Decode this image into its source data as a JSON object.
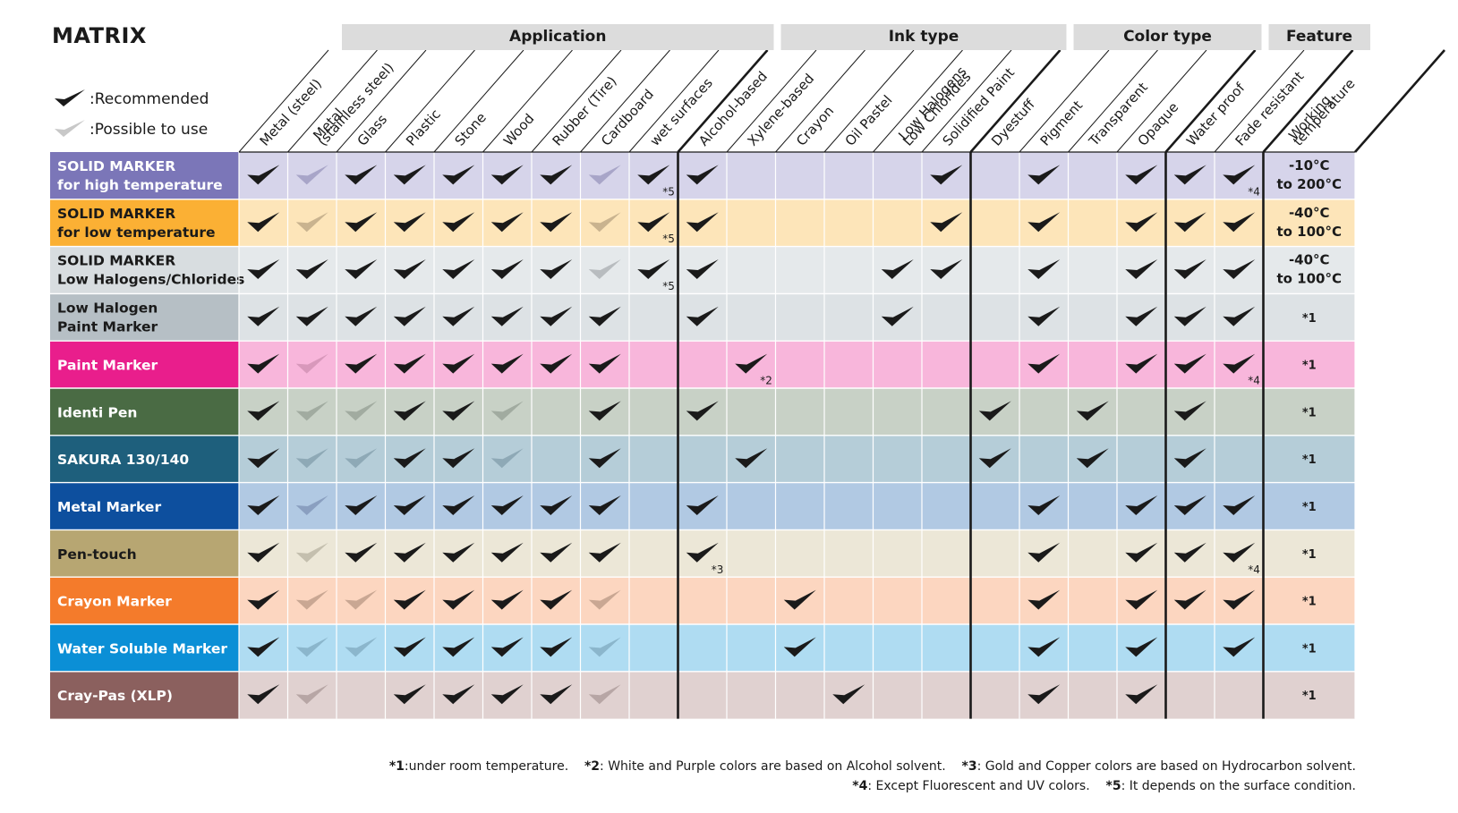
{
  "title": "MATRIX",
  "legend": {
    "recommended": ":Recommended",
    "possible": ":Possible to use"
  },
  "groups": [
    {
      "label": "Application"
    },
    {
      "label": "Ink type"
    },
    {
      "label": "Color type"
    },
    {
      "label": "Feature"
    }
  ],
  "columns": [
    {
      "lines": [
        "Metal (steel)"
      ]
    },
    {
      "lines": [
        "Metal",
        "(stainless steel)"
      ]
    },
    {
      "lines": [
        "Glass"
      ]
    },
    {
      "lines": [
        "Plastic"
      ]
    },
    {
      "lines": [
        "Stone"
      ]
    },
    {
      "lines": [
        "Wood"
      ]
    },
    {
      "lines": [
        "Rubber (Tire)"
      ]
    },
    {
      "lines": [
        "Cardboard"
      ]
    },
    {
      "lines": [
        "wet surfaces"
      ]
    },
    {
      "lines": [
        "Alcohol-based"
      ]
    },
    {
      "lines": [
        "Xylene-based"
      ]
    },
    {
      "lines": [
        "Crayon"
      ]
    },
    {
      "lines": [
        "Oil Pastel"
      ]
    },
    {
      "lines": [
        "Low Halogens",
        "Low Chlorides"
      ]
    },
    {
      "lines": [
        "Solidified Paint"
      ]
    },
    {
      "lines": [
        "Dyestuff"
      ]
    },
    {
      "lines": [
        "Pigment"
      ]
    },
    {
      "lines": [
        "Transparent"
      ]
    },
    {
      "lines": [
        "Opaque"
      ]
    },
    {
      "lines": [
        "Water proof"
      ]
    },
    {
      "lines": [
        "Fade resistant"
      ]
    },
    {
      "lines": [
        "Working",
        "temperature"
      ]
    }
  ],
  "colors": {
    "check_dark": "#1a1a1a",
    "check_possible_legend": "#c8c8c8",
    "header_band": "#dcdcdc"
  },
  "rows": [
    {
      "lines": [
        "SOLID MARKER",
        "for high temperature"
      ],
      "label_bg": "#7b76b8",
      "label_color": "#ffffff",
      "cell_bg": "#d6d4ea",
      "light_check": "#a8a5c8",
      "cells": [
        "R",
        "P",
        "R",
        "R",
        "R",
        "R",
        "R",
        "P",
        "R*5",
        "R",
        "",
        "",
        "",
        "",
        "R",
        "",
        "R",
        "",
        "R",
        "R",
        "R*4"
      ],
      "temp": [
        "-10°C",
        "to 200°C"
      ]
    },
    {
      "lines": [
        "SOLID MARKER",
        "for low temperature"
      ],
      "label_bg": "#fbb034",
      "label_color": "#1a1a1a",
      "cell_bg": "#fde5b9",
      "light_check": "#c9b38f",
      "cells": [
        "R",
        "P",
        "R",
        "R",
        "R",
        "R",
        "R",
        "P",
        "R*5",
        "R",
        "",
        "",
        "",
        "",
        "R",
        "",
        "R",
        "",
        "R",
        "R",
        "R"
      ],
      "temp": [
        "-40°C",
        "to 100°C"
      ]
    },
    {
      "lines": [
        "SOLID MARKER",
        "Low Halogens/Chlorides"
      ],
      "label_bg": "#d8dde0",
      "label_color": "#1a1a1a",
      "cell_bg": "#e5e9eb",
      "light_check": "#b8bcbf",
      "cells": [
        "R",
        "R",
        "R",
        "R",
        "R",
        "R",
        "R",
        "P",
        "R*5",
        "R",
        "",
        "",
        "",
        "R",
        "R",
        "",
        "R",
        "",
        "R",
        "R",
        "R"
      ],
      "temp": [
        "-40°C",
        "to 100°C"
      ]
    },
    {
      "lines": [
        "Low Halogen",
        "Paint Marker"
      ],
      "label_bg": "#b6bfc5",
      "label_color": "#1a1a1a",
      "cell_bg": "#dde2e5",
      "light_check": "#b2b8bc",
      "cells": [
        "R",
        "R",
        "R",
        "R",
        "R",
        "R",
        "R",
        "R",
        "",
        "R",
        "",
        "",
        "",
        "R",
        "",
        "",
        "R",
        "",
        "R",
        "R",
        "R"
      ],
      "temp": [
        "*1"
      ]
    },
    {
      "lines": [
        "Paint Marker"
      ],
      "label_bg": "#e91e8c",
      "label_color": "#ffffff",
      "cell_bg": "#f8b6db",
      "light_check": "#d898bb",
      "cells": [
        "R",
        "P",
        "R",
        "R",
        "R",
        "R",
        "R",
        "R",
        "",
        "",
        "R*2",
        "",
        "",
        "",
        "",
        "",
        "R",
        "",
        "R",
        "R",
        "R*4"
      ],
      "temp": [
        "*1"
      ]
    },
    {
      "lines": [
        "Identi Pen"
      ],
      "label_bg": "#4a6b44",
      "label_color": "#ffffff",
      "cell_bg": "#c8d1c6",
      "light_check": "#a1aba0",
      "cells": [
        "R",
        "P",
        "P",
        "R",
        "R",
        "P",
        "",
        "R",
        "",
        "R",
        "",
        "",
        "",
        "",
        "",
        "R",
        "",
        "R",
        "",
        "R",
        ""
      ],
      "temp": [
        "*1"
      ]
    },
    {
      "lines": [
        "SAKURA 130/140"
      ],
      "label_bg": "#1e5f7c",
      "label_color": "#ffffff",
      "cell_bg": "#b5cdd8",
      "light_check": "#8ea9b6",
      "cells": [
        "R",
        "P",
        "P",
        "R",
        "R",
        "P",
        "",
        "R",
        "",
        "",
        "R",
        "",
        "",
        "",
        "",
        "R",
        "",
        "R",
        "",
        "R",
        ""
      ],
      "temp": [
        "*1"
      ]
    },
    {
      "lines": [
        "Metal Marker"
      ],
      "label_bg": "#0d4f9e",
      "label_color": "#ffffff",
      "cell_bg": "#b1c9e3",
      "light_check": "#8a9fc0",
      "cells": [
        "R",
        "P",
        "R",
        "R",
        "R",
        "R",
        "R",
        "R",
        "",
        "R",
        "",
        "",
        "",
        "",
        "",
        "",
        "R",
        "",
        "R",
        "R",
        "R"
      ],
      "temp": [
        "*1"
      ]
    },
    {
      "lines": [
        "Pen-touch"
      ],
      "label_bg": "#b7a672",
      "label_color": "#1a1a1a",
      "cell_bg": "#ece7d7",
      "light_check": "#c4bfae",
      "cells": [
        "R",
        "P",
        "R",
        "R",
        "R",
        "R",
        "R",
        "R",
        "",
        "R*3",
        "",
        "",
        "",
        "",
        "",
        "",
        "R",
        "",
        "R",
        "R",
        "R*4"
      ],
      "temp": [
        "*1"
      ]
    },
    {
      "lines": [
        "Crayon Marker"
      ],
      "label_bg": "#f47b2b",
      "label_color": "#ffffff",
      "cell_bg": "#fcd6c0",
      "light_check": "#c9a793",
      "cells": [
        "R",
        "P",
        "P",
        "R",
        "R",
        "R",
        "R",
        "P",
        "",
        "",
        "",
        "R",
        "",
        "",
        "",
        "",
        "R",
        "",
        "R",
        "R",
        "R"
      ],
      "temp": [
        "*1"
      ]
    },
    {
      "lines": [
        "Water Soluble Marker"
      ],
      "label_bg": "#0b8fd6",
      "label_color": "#ffffff",
      "cell_bg": "#afdcf2",
      "light_check": "#8bb6cc",
      "cells": [
        "R",
        "P",
        "P",
        "R",
        "R",
        "R",
        "R",
        "P",
        "",
        "",
        "",
        "R",
        "",
        "",
        "",
        "",
        "R",
        "",
        "R",
        "",
        "R"
      ],
      "temp": [
        "*1"
      ]
    },
    {
      "lines": [
        "Cray-Pas (XLP)"
      ],
      "label_bg": "#8b605e",
      "label_color": "#ffffff",
      "cell_bg": "#e0d1d0",
      "light_check": "#b7a6a5",
      "cells": [
        "R",
        "P",
        "",
        "R",
        "R",
        "R",
        "R",
        "P",
        "",
        "",
        "",
        "",
        "R",
        "",
        "",
        "",
        "R",
        "",
        "R",
        "",
        ""
      ],
      "temp": [
        "*1"
      ]
    }
  ],
  "footnotes": {
    "line1": [
      {
        "mark": "*1",
        "text": ":under room temperature."
      },
      {
        "mark": "*2",
        "text": ": White and Purple colors are based on Alcohol solvent."
      },
      {
        "mark": "*3",
        "text": ": Gold and Copper colors are based on Hydrocarbon solvent."
      }
    ],
    "line2": [
      {
        "mark": "*4",
        "text": ": Except Fluorescent and UV colors."
      },
      {
        "mark": "*5",
        "text": ": It depends on the surface condition."
      }
    ]
  }
}
